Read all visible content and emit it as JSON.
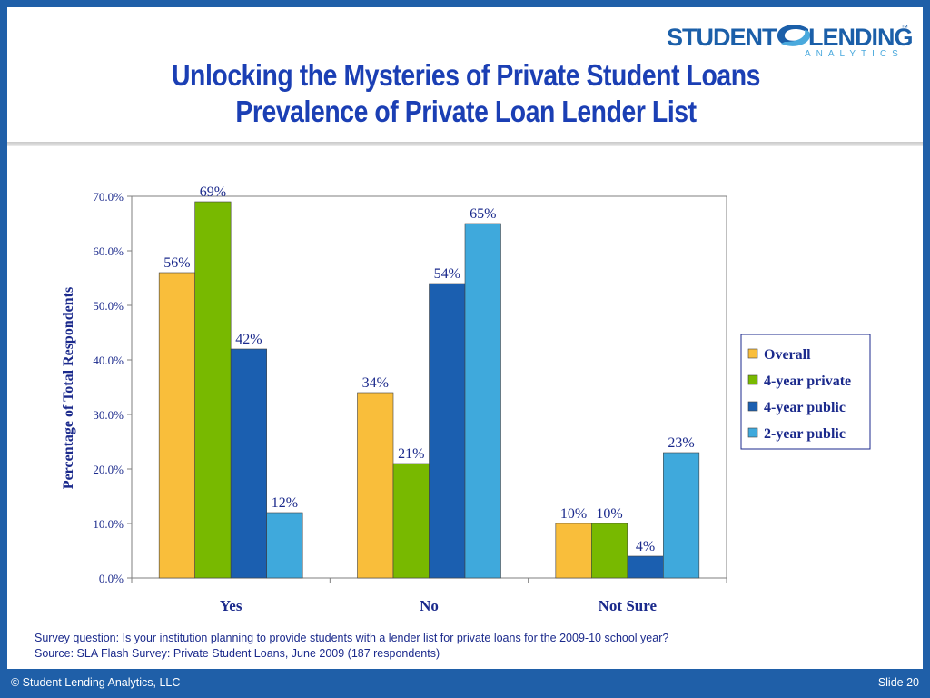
{
  "slide": {
    "title_line1": "Unlocking the Mysteries of Private Student Loans",
    "title_line2": "Prevalence of Private Loan Lender List",
    "logo": {
      "word1": "STUDENT",
      "word2": "LENDING",
      "tm": "™",
      "sub": "ANALYTICS"
    },
    "note_question": "Survey question:  Is your institution planning to provide students with a lender list for private loans for the 2009-10 school year?",
    "note_source": "Source:  SLA Flash Survey:  Private Student Loans, June 2009 (187 respondents)",
    "footer_left": "© Student Lending Analytics, LLC",
    "footer_right": "Slide 20"
  },
  "colors": {
    "background": "#1f5fa8",
    "title": "#1b3fb4",
    "note_text": "#1b2a8c"
  },
  "chart_data": {
    "type": "bar",
    "title": "",
    "xlabel": "",
    "ylabel": "Percentage of Total Respondents",
    "ylim": [
      0,
      70
    ],
    "yticks": [
      "0.0%",
      "10.0%",
      "20.0%",
      "30.0%",
      "40.0%",
      "50.0%",
      "60.0%",
      "70.0%"
    ],
    "grid": false,
    "legend_position": "right",
    "categories": [
      "Yes",
      "No",
      "Not Sure"
    ],
    "series": [
      {
        "name": "Overall",
        "color": "#f9be3b",
        "values": [
          56,
          34,
          10
        ],
        "labels": [
          "56%",
          "34%",
          "10%"
        ]
      },
      {
        "name": "4-year private",
        "color": "#78b900",
        "values": [
          69,
          21,
          10
        ],
        "labels": [
          "69%",
          "21%",
          "10%"
        ]
      },
      {
        "name": "4-year public",
        "color": "#1b5fb0",
        "values": [
          42,
          54,
          4
        ],
        "labels": [
          "42%",
          "54%",
          "4%"
        ]
      },
      {
        "name": "2-year public",
        "color": "#3fa9dc",
        "values": [
          12,
          65,
          23
        ],
        "labels": [
          "12%",
          "65%",
          "23%"
        ]
      }
    ]
  }
}
